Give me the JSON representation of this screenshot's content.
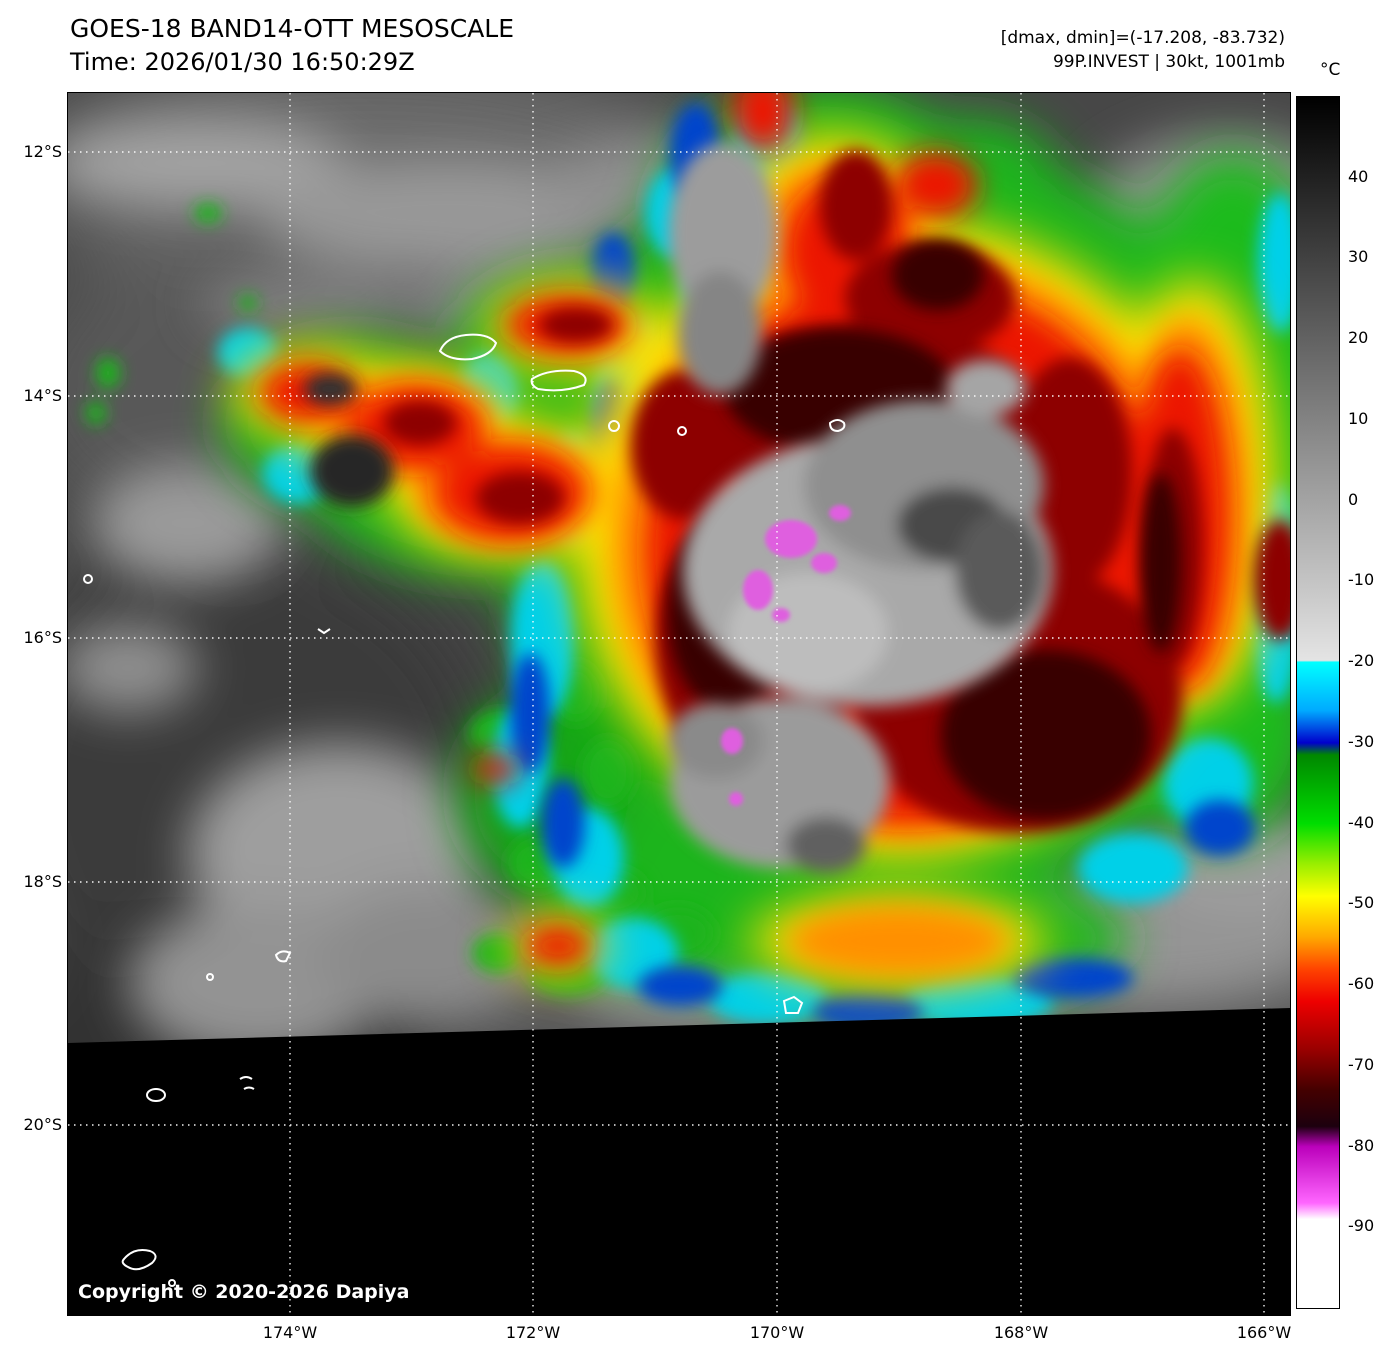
{
  "header": {
    "title": "GOES-18 BAND14-OTT MESOSCALE",
    "time": "Time: 2026/01/30 16:50:29Z",
    "dmax_dmin": "[dmax, dmin]=(-17.208, -83.732)",
    "storm_info": "99P.INVEST | 30kt, 1001mb"
  },
  "colorbar": {
    "unit": "°C",
    "ticks": [
      {
        "value": 40,
        "label": "40"
      },
      {
        "value": 30,
        "label": "30"
      },
      {
        "value": 20,
        "label": "20"
      },
      {
        "value": 10,
        "label": "10"
      },
      {
        "value": 0,
        "label": "0"
      },
      {
        "value": -10,
        "label": "-10"
      },
      {
        "value": -20,
        "label": "-20"
      },
      {
        "value": -30,
        "label": "-30"
      },
      {
        "value": -40,
        "label": "-40"
      },
      {
        "value": -50,
        "label": "-50"
      },
      {
        "value": -60,
        "label": "-60"
      },
      {
        "value": -70,
        "label": "-70"
      },
      {
        "value": -80,
        "label": "-80"
      },
      {
        "value": -90,
        "label": "-90"
      }
    ],
    "scale_range": {
      "top_c": 50,
      "bottom_c": -100
    },
    "stops": [
      {
        "temp": 50,
        "color": "#000000"
      },
      {
        "temp": -19.8,
        "color": "#e4e4e4"
      },
      {
        "temp": -20,
        "color": "#00ffff"
      },
      {
        "temp": -26,
        "color": "#00aaff"
      },
      {
        "temp": -30,
        "color": "#0000cc"
      },
      {
        "temp": -31.5,
        "color": "#008800"
      },
      {
        "temp": -40,
        "color": "#00dd00"
      },
      {
        "temp": -45,
        "color": "#99ee00"
      },
      {
        "temp": -49,
        "color": "#ffff00"
      },
      {
        "temp": -54,
        "color": "#ffaa00"
      },
      {
        "temp": -58,
        "color": "#ff4400"
      },
      {
        "temp": -62,
        "color": "#ee0000"
      },
      {
        "temp": -68,
        "color": "#990000"
      },
      {
        "temp": -73,
        "color": "#440000"
      },
      {
        "temp": -77.5,
        "color": "#1c000e"
      },
      {
        "temp": -80,
        "color": "#bb00bb"
      },
      {
        "temp": -87,
        "color": "#ff66ff"
      },
      {
        "temp": -89,
        "color": "#ffffff"
      },
      {
        "temp": -100,
        "color": "#ffffff"
      }
    ]
  },
  "map": {
    "lat_labels": [
      "12°S",
      "14°S",
      "16°S",
      "18°S",
      "20°S"
    ],
    "lon_labels": [
      "174°W",
      "172°W",
      "170°W",
      "168°W",
      "166°W"
    ],
    "copyright": "Copyright © 2020-2026 Dapiya"
  }
}
